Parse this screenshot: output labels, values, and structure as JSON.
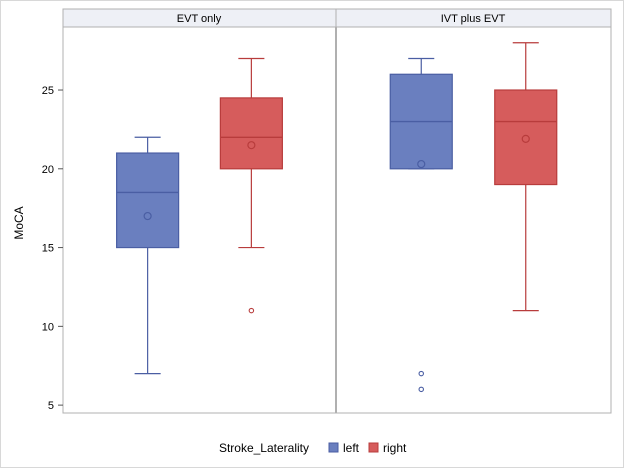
{
  "chart_data": {
    "type": "box",
    "ylabel": "MoCA",
    "ylim": [
      4.5,
      29
    ],
    "yticks": [
      5,
      10,
      15,
      20,
      25
    ],
    "panels": [
      {
        "label": "EVT only",
        "boxes": [
          {
            "group": "left",
            "whisker_low": 7,
            "q1": 15,
            "median": 18.5,
            "q3": 21,
            "whisker_high": 22,
            "mean": 17,
            "outliers": []
          },
          {
            "group": "right",
            "whisker_low": 15,
            "q1": 20,
            "median": 22,
            "q3": 24.5,
            "whisker_high": 27,
            "mean": 21.5,
            "outliers": [
              11
            ]
          }
        ]
      },
      {
        "label": "IVT plus EVT",
        "boxes": [
          {
            "group": "left",
            "whisker_low": 20,
            "q1": 20,
            "median": 23,
            "q3": 26,
            "whisker_high": 27,
            "mean": 20.3,
            "outliers": [
              7,
              6
            ]
          },
          {
            "group": "right",
            "whisker_low": 11,
            "q1": 19,
            "median": 23,
            "q3": 25,
            "whisker_high": 28,
            "mean": 21.9,
            "outliers": []
          }
        ]
      }
    ],
    "legend": {
      "title": "Stroke_Laterality",
      "position": "bottom",
      "entries": [
        {
          "name": "left",
          "fill": "#6a7fbf",
          "stroke": "#4a5ea3"
        },
        {
          "name": "right",
          "fill": "#d65c5c",
          "stroke": "#b83c3c"
        }
      ]
    }
  }
}
